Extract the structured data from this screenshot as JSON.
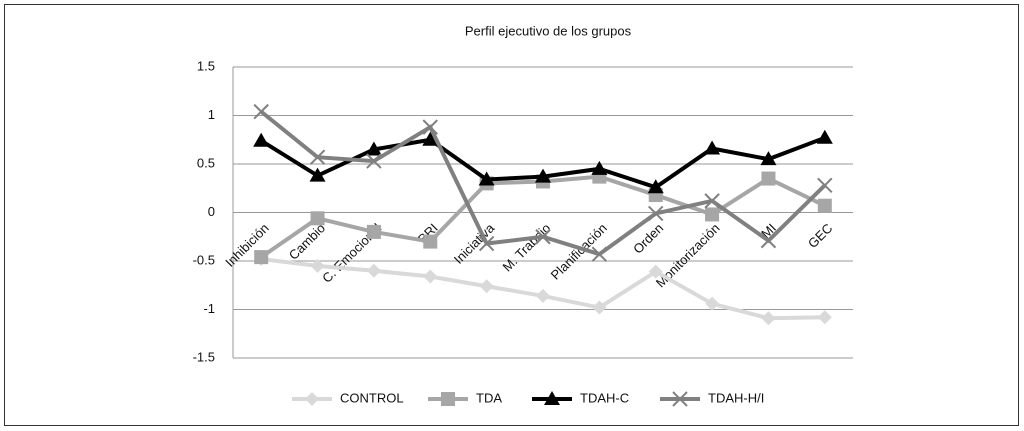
{
  "chart_data": {
    "type": "line",
    "title": "Perfil ejecutivo de los grupos",
    "categories": [
      "Inhibición",
      "Cambio",
      "C. Emocional",
      "BRI",
      "Iniciativa",
      "M. Trabajo",
      "Planificación",
      "Orden",
      "Monitorización",
      "MI",
      "GEC"
    ],
    "series": [
      {
        "name": "CONTROL",
        "color": "#d9d9d9",
        "marker": "diamond",
        "values": [
          -0.48,
          -0.55,
          -0.6,
          -0.66,
          -0.76,
          -0.86,
          -0.98,
          -0.61,
          -0.94,
          -1.09,
          -1.08
        ]
      },
      {
        "name": "TDA",
        "color": "#a6a6a6",
        "marker": "square",
        "values": [
          -0.46,
          -0.06,
          -0.2,
          -0.3,
          0.3,
          0.32,
          0.37,
          0.18,
          -0.02,
          0.35,
          0.07
        ]
      },
      {
        "name": "TDAH-C",
        "color": "#000000",
        "marker": "triangle",
        "values": [
          0.74,
          0.38,
          0.65,
          0.75,
          0.34,
          0.37,
          0.45,
          0.26,
          0.66,
          0.55,
          0.77
        ]
      },
      {
        "name": "TDAH-H/I",
        "color": "#808080",
        "marker": "x",
        "values": [
          1.04,
          0.57,
          0.53,
          0.88,
          -0.32,
          -0.25,
          -0.43,
          -0.01,
          0.12,
          -0.29,
          0.28
        ]
      }
    ],
    "ylim": [
      -1.5,
      1.5
    ],
    "yticks": [
      -1.5,
      -1,
      -0.5,
      0,
      0.5,
      1,
      1.5
    ],
    "grid": true,
    "legend": "bottom"
  }
}
